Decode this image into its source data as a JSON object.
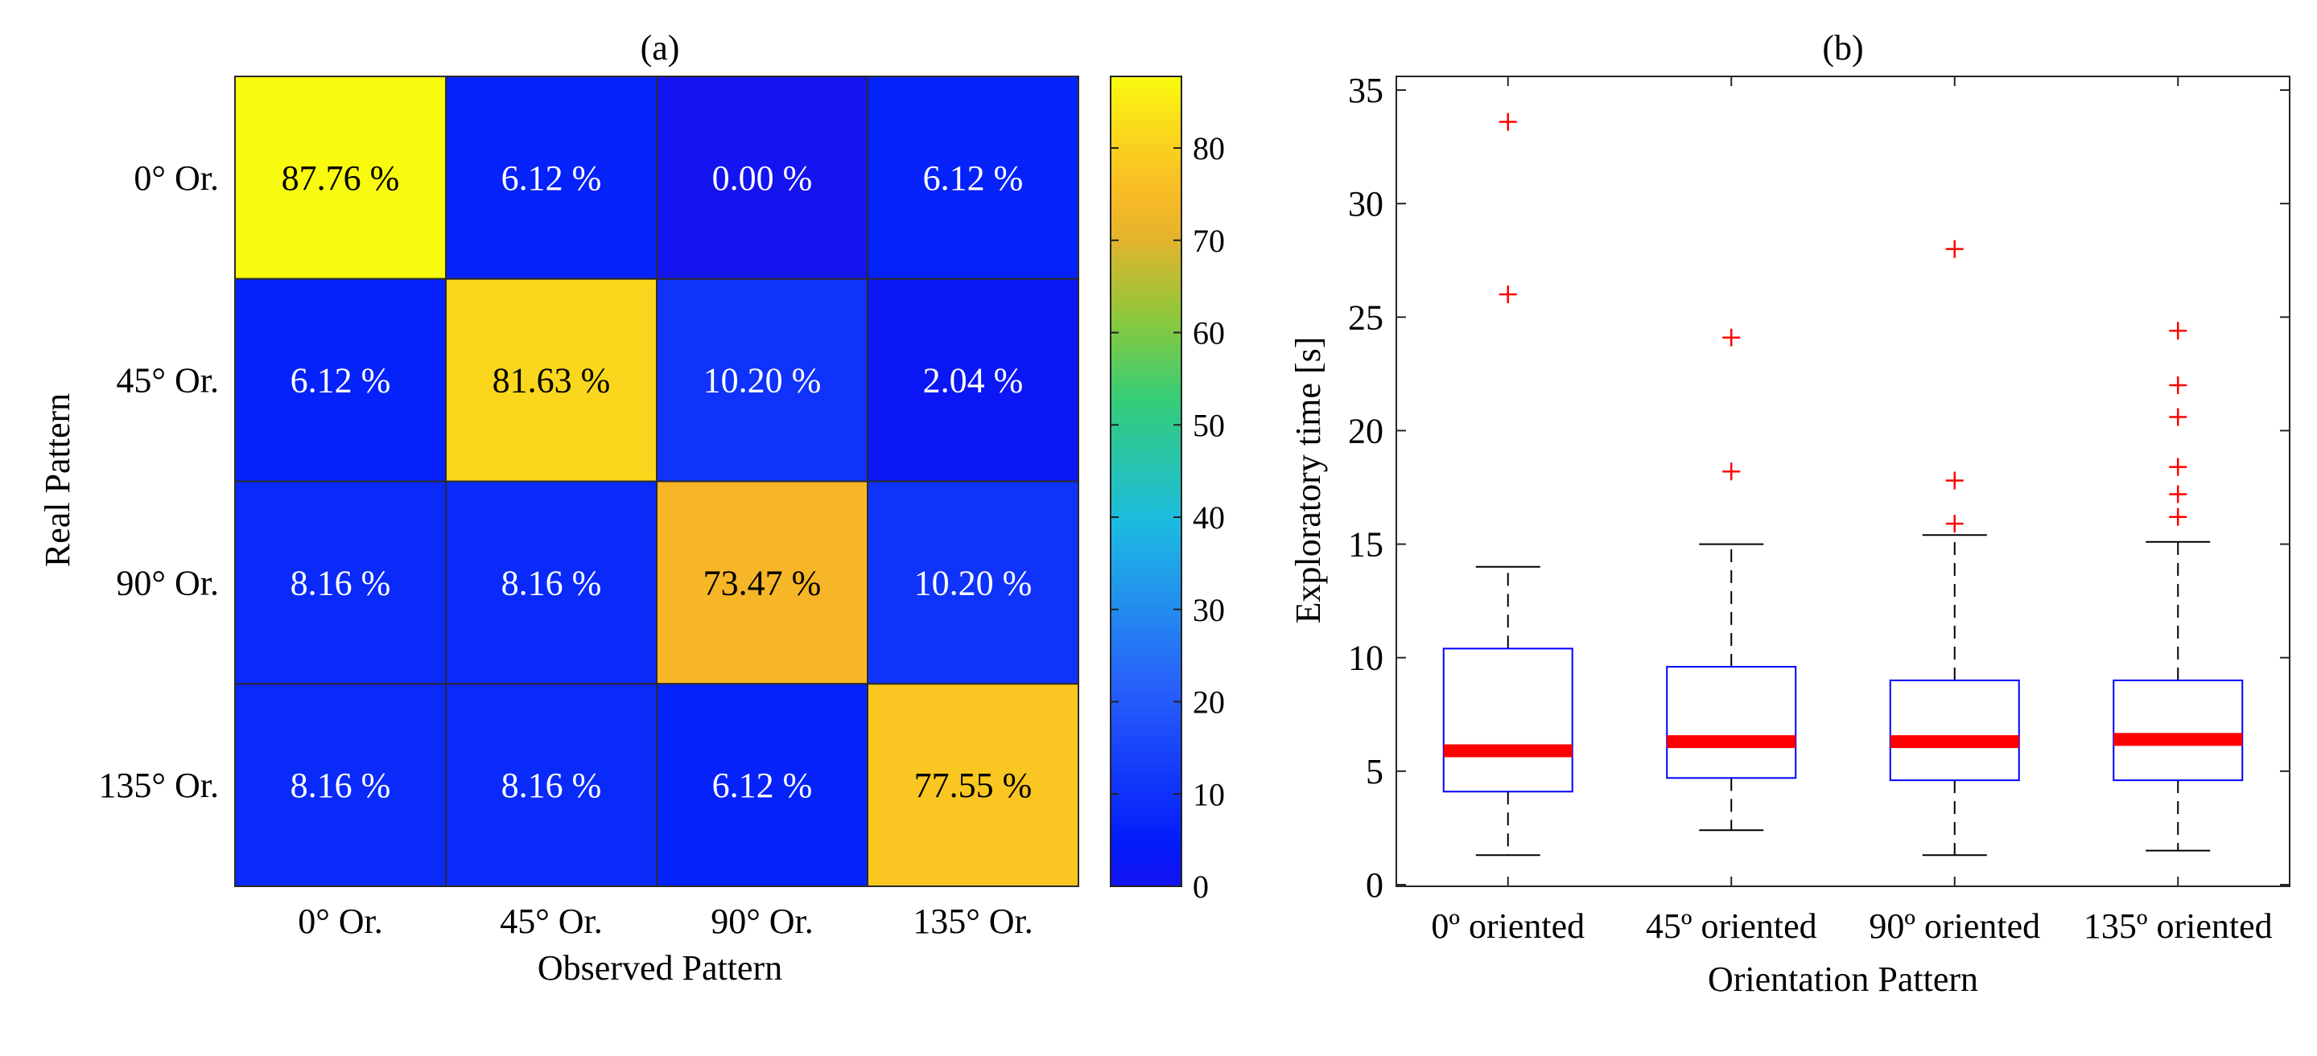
{
  "chart_data": [
    {
      "type": "heatmap",
      "title": "(a)",
      "xlabel": "Observed Pattern",
      "ylabel": "Real Pattern",
      "x_categories": [
        "0° Or.",
        "45° Or.",
        "90° Or.",
        "135° Or."
      ],
      "y_categories": [
        "0° Or.",
        "45° Or.",
        "90° Or.",
        "135° Or."
      ],
      "values": [
        [
          87.76,
          6.12,
          0.0,
          6.12
        ],
        [
          6.12,
          81.63,
          10.2,
          2.04
        ],
        [
          8.16,
          8.16,
          73.47,
          10.2
        ],
        [
          8.16,
          8.16,
          6.12,
          77.55
        ]
      ],
      "cell_labels": [
        [
          "87.76 %",
          "6.12 %",
          "0.00 %",
          "6.12 %"
        ],
        [
          "6.12 %",
          "81.63 %",
          "10.20 %",
          "2.04 %"
        ],
        [
          "8.16 %",
          "8.16 %",
          "73.47 %",
          "10.20 %"
        ],
        [
          "8.16 %",
          "8.16 %",
          "6.12 %",
          "77.55 %"
        ]
      ],
      "colorbar": {
        "colormap": "parula",
        "range": [
          0,
          87.76
        ],
        "ticks": [
          0,
          10,
          20,
          30,
          40,
          50,
          60,
          70,
          80
        ],
        "tick_labels": [
          "0",
          "10",
          "20",
          "30",
          "40",
          "50",
          "60",
          "70",
          "80"
        ]
      }
    },
    {
      "type": "box",
      "title": "(b)",
      "xlabel": "Orientation Pattern",
      "ylabel": "Exploratory time [s]",
      "ylim": [
        0,
        35
      ],
      "yticks": [
        0,
        5,
        10,
        15,
        20,
        25,
        30,
        35
      ],
      "ytick_labels": [
        "0",
        "5",
        "10",
        "15",
        "20",
        "25",
        "30",
        "35"
      ],
      "categories": [
        "0º oriented",
        "45º oriented",
        "90º oriented",
        "135º oriented"
      ],
      "boxes": [
        {
          "whisker_low": 1.3,
          "q1": 4.1,
          "median": 5.9,
          "q3": 10.4,
          "whisker_high": 14.0,
          "outliers": [
            26.0,
            33.6
          ]
        },
        {
          "whisker_low": 2.4,
          "q1": 4.7,
          "median": 6.3,
          "q3": 9.6,
          "whisker_high": 15.0,
          "outliers": [
            18.2,
            24.1
          ]
        },
        {
          "whisker_low": 1.3,
          "q1": 4.6,
          "median": 6.3,
          "q3": 9.0,
          "whisker_high": 15.4,
          "outliers": [
            15.9,
            17.8,
            28.0
          ]
        },
        {
          "whisker_low": 1.5,
          "q1": 4.6,
          "median": 6.4,
          "q3": 9.0,
          "whisker_high": 15.1,
          "outliers": [
            16.2,
            17.2,
            18.4,
            20.6,
            22.0,
            24.4
          ]
        }
      ],
      "colors": {
        "box": "#0000ff",
        "median": "#ff0000",
        "outlier": "#ff0000",
        "whisker": "#000000"
      }
    }
  ]
}
